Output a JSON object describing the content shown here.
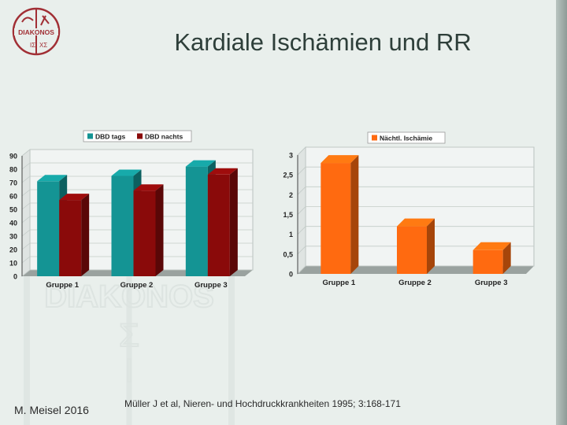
{
  "slide": {
    "title": "Kardiale Ischämien und RR",
    "author": "M. Meisel 2016",
    "citation": "Müller J et al, Nieren- und Hochdruckkrankheiten 1995; 3:168-171",
    "logo_text": "DIAKONOS"
  },
  "colors": {
    "tags": "#149494",
    "nachts": "#8a0a0a",
    "isch": "#ff6a10"
  },
  "chart_data": [
    {
      "type": "bar",
      "title": "",
      "categories": [
        "Gruppe 1",
        "Gruppe 2",
        "Gruppe 3"
      ],
      "series": [
        {
          "name": "DBD tags",
          "values": [
            71,
            75,
            82
          ]
        },
        {
          "name": "DBD nachts",
          "values": [
            57,
            64,
            76
          ]
        }
      ],
      "yticks": [
        "0",
        "10",
        "20",
        "30",
        "40",
        "50",
        "60",
        "70",
        "80",
        "90"
      ],
      "ylim": [
        0,
        90
      ],
      "legend": "top",
      "grid": true
    },
    {
      "type": "bar",
      "title": "",
      "categories": [
        "Gruppe 1",
        "Gruppe 2",
        "Gruppe 3"
      ],
      "series": [
        {
          "name": "Nächtl. Ischämie",
          "values": [
            2.8,
            1.2,
            0.6
          ]
        }
      ],
      "yticks": [
        "0",
        "0,5",
        "1",
        "1,5",
        "2",
        "2,5",
        "3"
      ],
      "ylim": [
        0,
        3
      ],
      "legend": "top",
      "grid": true
    }
  ]
}
